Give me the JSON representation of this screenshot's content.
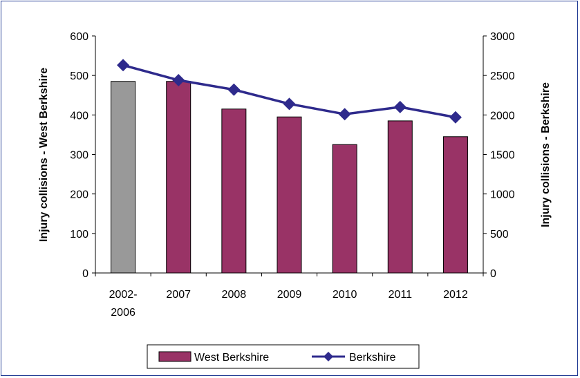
{
  "chart_data": {
    "type": "bar",
    "categories": [
      [
        "2002-",
        "2006"
      ],
      [
        "2007"
      ],
      [
        "2008"
      ],
      [
        "2009"
      ],
      [
        "2010"
      ],
      [
        "2011"
      ],
      [
        "2012"
      ]
    ],
    "ylabel": "Injury collisions - West Berkshire",
    "y2label": "Injury collisions - Berkshire",
    "ylim": [
      0,
      600
    ],
    "y2lim": [
      0,
      3000
    ],
    "yticks": [
      0,
      100,
      200,
      300,
      400,
      500,
      600
    ],
    "y2ticks": [
      0,
      500,
      1000,
      1500,
      2000,
      2500,
      3000
    ],
    "grid": false,
    "legend_position": "bottom",
    "series": [
      {
        "name": "West Berkshire",
        "type": "bar",
        "axis": "left",
        "values": [
          485,
          485,
          415,
          395,
          325,
          385,
          345
        ],
        "colors": [
          "#999999",
          "#993366",
          "#993366",
          "#993366",
          "#993366",
          "#993366",
          "#993366"
        ]
      },
      {
        "name": "Berkshire",
        "type": "line",
        "axis": "right",
        "values": [
          2630,
          2440,
          2320,
          2140,
          2010,
          2100,
          1970
        ],
        "color": "#2e2a8c"
      }
    ]
  }
}
